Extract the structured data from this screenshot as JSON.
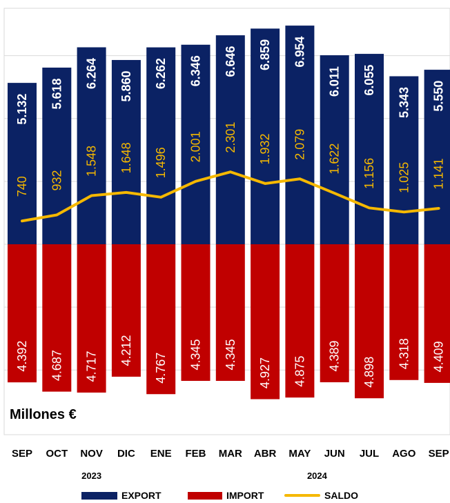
{
  "chart_data": {
    "type": "bar",
    "unit": "Millones €",
    "categories": [
      "SEP",
      "OCT",
      "NOV",
      "DIC",
      "ENE",
      "FEB",
      "MAR",
      "ABR",
      "MAY",
      "JUN",
      "JUL",
      "AGO",
      "SEP"
    ],
    "year_labels": [
      "2023",
      "2024"
    ],
    "series": [
      {
        "name": "EXPORT",
        "type": "bar",
        "color": "#0b2264",
        "values": [
          5132,
          5618,
          6264,
          5860,
          6262,
          6346,
          6646,
          6859,
          6954,
          6011,
          6055,
          5343,
          5550
        ],
        "labels": [
          "5.132",
          "5.618",
          "6.264",
          "5.860",
          "6.262",
          "6.346",
          "6.646",
          "6.859",
          "6.954",
          "6.011",
          "6.055",
          "5.343",
          "5.550"
        ]
      },
      {
        "name": "IMPORT",
        "type": "bar",
        "color": "#c00000",
        "values": [
          4392,
          4687,
          4717,
          4212,
          4767,
          4345,
          4345,
          4927,
          4875,
          4389,
          4898,
          4318,
          4409
        ],
        "labels": [
          "4.392",
          "4.687",
          "4.717",
          "4.212",
          "4.767",
          "4.345",
          "4.345",
          "4.927",
          "4.875",
          "4.389",
          "4.898",
          "4.318",
          "4.409"
        ]
      },
      {
        "name": "SALDO",
        "type": "line",
        "color": "#f5b800",
        "values": [
          740,
          932,
          1548,
          1648,
          1496,
          2001,
          2301,
          1932,
          2079,
          1622,
          1156,
          1025,
          1141
        ],
        "labels": [
          "740",
          "932",
          "1.548",
          "1.648",
          "1.496",
          "2.001",
          "2.301",
          "1.932",
          "2.079",
          "1.622",
          "1.156",
          "1.025",
          "1.141"
        ]
      }
    ],
    "import_axis": "negative",
    "grid": true,
    "legend_position": "bottom"
  }
}
